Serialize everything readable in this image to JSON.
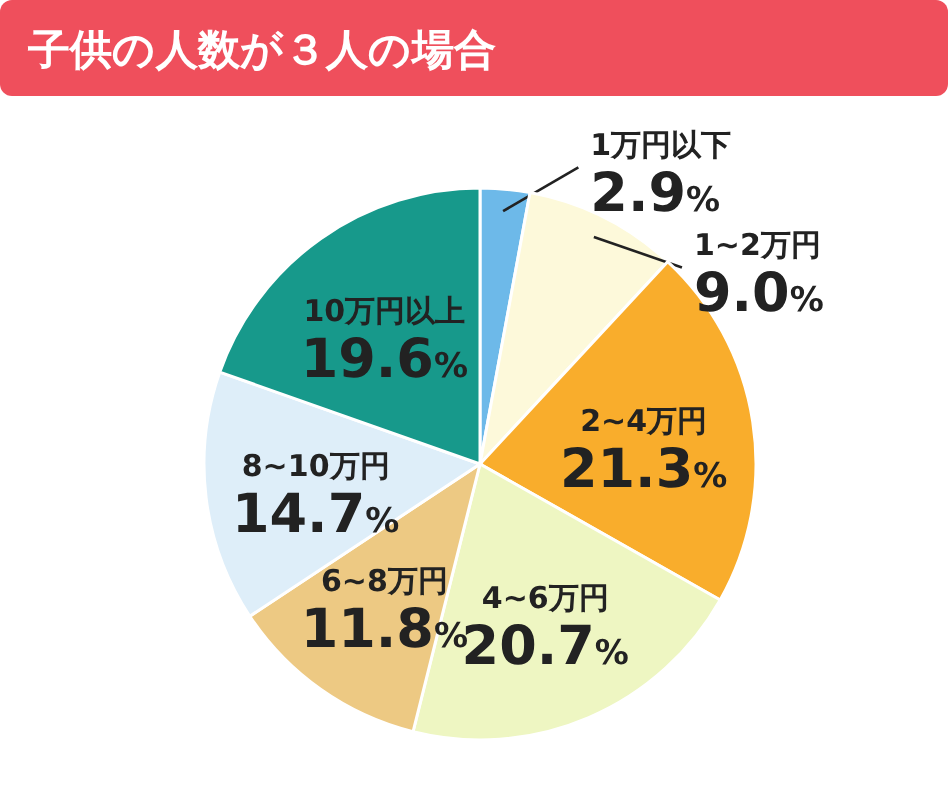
{
  "chart_data": {
    "type": "pie",
    "title": "子供の人数が３人の場合",
    "categories": [
      "1万円以下",
      "1~2万円",
      "2~4万円",
      "4~6万円",
      "6~8万円",
      "8~10万円",
      "10万円以上"
    ],
    "values": [
      2.9,
      9.0,
      21.3,
      20.7,
      11.8,
      14.7,
      19.6
    ],
    "value_labels": [
      "2.9%",
      "9.0%",
      "21.3%",
      "20.7%",
      "11.8%",
      "14.7%",
      "19.6%"
    ],
    "colors": [
      "#6db9e9",
      "#fdf9da",
      "#f9ad2c",
      "#eef6c2",
      "#edc983",
      "#deeef9",
      "#17998b"
    ]
  }
}
